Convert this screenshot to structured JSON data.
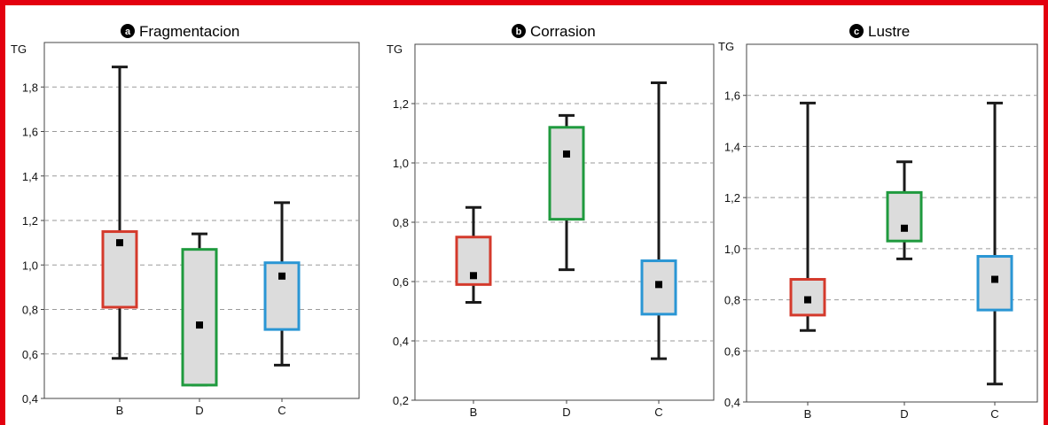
{
  "colors": {
    "frame": "#e3000f",
    "box_fill": "#dcdcdc",
    "whisker": "#1a1a1a",
    "grid": "#9a9a9a"
  },
  "chart_data": [
    {
      "type": "boxplot",
      "badge": "a",
      "title": "Fragmentacion",
      "ylabel": "TG",
      "ylim": [
        0.4,
        2.0
      ],
      "yticks": [
        "0,4",
        "0,6",
        "0,8",
        "1,0",
        "1,2",
        "1,4",
        "1,6",
        "1,8"
      ],
      "ytick_values": [
        0.4,
        0.6,
        0.8,
        1.0,
        1.2,
        1.4,
        1.6,
        1.8
      ],
      "grid": true,
      "categories": [
        "B",
        "D",
        "C"
      ],
      "series": [
        {
          "category": "B",
          "color": "#d43a2c",
          "whisker_low": 0.58,
          "box_low": 0.81,
          "median": 1.1,
          "box_high": 1.15,
          "whisker_high": 1.89
        },
        {
          "category": "D",
          "color": "#1f9a3e",
          "whisker_low": 0.46,
          "box_low": 0.46,
          "median": 0.73,
          "box_high": 1.07,
          "whisker_high": 1.14
        },
        {
          "category": "C",
          "color": "#2a96d4",
          "whisker_low": 0.55,
          "box_low": 0.71,
          "median": 0.95,
          "box_high": 1.01,
          "whisker_high": 1.28
        }
      ]
    },
    {
      "type": "boxplot",
      "badge": "b",
      "title": "Corrasion",
      "ylabel": "TG",
      "ylim": [
        0.2,
        1.4
      ],
      "yticks": [
        "0,2",
        "0,4",
        "0,6",
        "0,8",
        "1,0",
        "1,2"
      ],
      "ytick_values": [
        0.2,
        0.4,
        0.6,
        0.8,
        1.0,
        1.2
      ],
      "grid": true,
      "categories": [
        "B",
        "D",
        "C"
      ],
      "series": [
        {
          "category": "B",
          "color": "#d43a2c",
          "whisker_low": 0.53,
          "box_low": 0.59,
          "median": 0.62,
          "box_high": 0.75,
          "whisker_high": 0.85
        },
        {
          "category": "D",
          "color": "#1f9a3e",
          "whisker_low": 0.64,
          "box_low": 0.81,
          "median": 1.03,
          "box_high": 1.12,
          "whisker_high": 1.16
        },
        {
          "category": "C",
          "color": "#2a96d4",
          "whisker_low": 0.34,
          "box_low": 0.49,
          "median": 0.59,
          "box_high": 0.67,
          "whisker_high": 1.27
        }
      ]
    },
    {
      "type": "boxplot",
      "badge": "c",
      "title": "Lustre",
      "ylabel": "TG",
      "ylim": [
        0.4,
        1.8
      ],
      "yticks": [
        "0,4",
        "0,6",
        "0,8",
        "1,0",
        "1,2",
        "1,4",
        "1,6"
      ],
      "ytick_values": [
        0.4,
        0.6,
        0.8,
        1.0,
        1.2,
        1.4,
        1.6
      ],
      "grid": true,
      "categories": [
        "B",
        "D",
        "C"
      ],
      "series": [
        {
          "category": "B",
          "color": "#d43a2c",
          "whisker_low": 0.68,
          "box_low": 0.74,
          "median": 0.8,
          "box_high": 0.88,
          "whisker_high": 1.57
        },
        {
          "category": "D",
          "color": "#1f9a3e",
          "whisker_low": 0.96,
          "box_low": 1.03,
          "median": 1.08,
          "box_high": 1.22,
          "whisker_high": 1.34
        },
        {
          "category": "C",
          "color": "#2a96d4",
          "whisker_low": 0.47,
          "box_low": 0.76,
          "median": 0.88,
          "box_high": 0.97,
          "whisker_high": 1.57
        }
      ]
    }
  ]
}
